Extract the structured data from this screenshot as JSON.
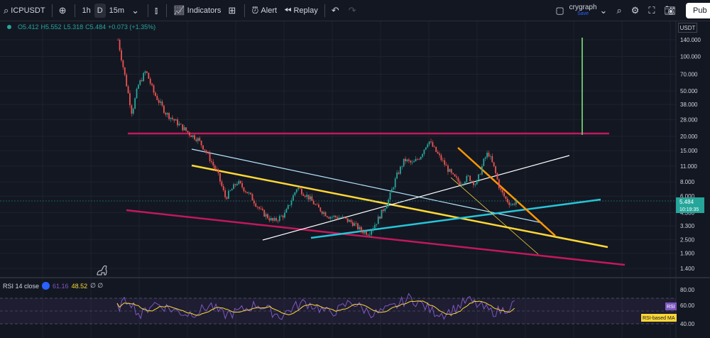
{
  "toolbar": {
    "symbol": "ICPUSDT",
    "intervals": [
      "1h",
      "D",
      "15m"
    ],
    "selected_interval": "D",
    "indicators_label": "Indicators",
    "alert_label": "Alert",
    "replay_label": "Replay",
    "layout_name": "crygraph",
    "layout_status": "Save",
    "publish_label": "Pub"
  },
  "ohlc": {
    "open": "O5.412",
    "high": "H5.552",
    "low": "L5.318",
    "close": "C5.484",
    "change": "+0.073 (+1.35%)"
  },
  "price_scale": {
    "currency": "USDT",
    "current_price": "5.484",
    "countdown": "10:19:35"
  },
  "rsi": {
    "title": "RSI 14 close",
    "rsi_value": "61.16",
    "ma_value": "48.52",
    "extra": "∅ ∅",
    "labels": [
      "RSI",
      "RSI-based MA"
    ],
    "ticks": [
      "80.00",
      "60.00",
      "40.00"
    ]
  },
  "colors": {
    "background": "#131722",
    "up": "#26a69a",
    "down": "#ef5350",
    "rsi_line": "#7e57c2",
    "rsi_ma": "#fdd835",
    "magenta": "#c2185b",
    "yellow": "#fdd835",
    "cyan": "#26c6da",
    "orange": "#ff9800",
    "green": "#4caf50"
  },
  "chart_data": {
    "type": "candlestick",
    "scale": "log",
    "y_ticks": [
      140,
      100,
      70,
      50,
      38,
      28,
      20,
      15,
      11,
      8,
      6,
      4.3,
      3.3,
      2.5,
      1.9,
      1.4
    ],
    "y_tick_labels": [
      "140.000",
      "100.000",
      "70.000",
      "50.000",
      "38.000",
      "28.000",
      "20.000",
      "15.000",
      "11.000",
      "8.000",
      "6.000",
      "4.300",
      "3.300",
      "2.500",
      "1.900",
      "1.400"
    ],
    "price_path": [
      [
        0.0,
        140
      ],
      [
        0.02,
        60
      ],
      [
        0.035,
        32
      ],
      [
        0.05,
        55
      ],
      [
        0.07,
        75
      ],
      [
        0.09,
        48
      ],
      [
        0.12,
        32
      ],
      [
        0.15,
        26
      ],
      [
        0.18,
        21
      ],
      [
        0.2,
        19
      ],
      [
        0.22,
        15
      ],
      [
        0.25,
        9.5
      ],
      [
        0.27,
        5.8
      ],
      [
        0.3,
        8.0
      ],
      [
        0.33,
        6.2
      ],
      [
        0.36,
        4.4
      ],
      [
        0.39,
        3.6
      ],
      [
        0.42,
        4.2
      ],
      [
        0.45,
        7.2
      ],
      [
        0.48,
        5.8
      ],
      [
        0.5,
        4.8
      ],
      [
        0.53,
        4.0
      ],
      [
        0.56,
        3.9
      ],
      [
        0.59,
        3.5
      ],
      [
        0.61,
        3.0
      ],
      [
        0.63,
        2.85
      ],
      [
        0.65,
        3.6
      ],
      [
        0.68,
        5.6
      ],
      [
        0.7,
        9.0
      ],
      [
        0.72,
        12.5
      ],
      [
        0.74,
        11.5
      ],
      [
        0.76,
        13.5
      ],
      [
        0.78,
        18.5
      ],
      [
        0.8,
        14.5
      ],
      [
        0.82,
        11.5
      ],
      [
        0.84,
        9.0
      ],
      [
        0.86,
        7.8
      ],
      [
        0.88,
        8.8
      ],
      [
        0.9,
        7.6
      ],
      [
        0.92,
        12.5
      ],
      [
        0.93,
        14.5
      ],
      [
        0.945,
        10.5
      ],
      [
        0.96,
        6.8
      ],
      [
        0.975,
        5.6
      ],
      [
        0.99,
        5.0
      ],
      [
        1.0,
        5.484
      ]
    ],
    "rsi_path": [
      0.52,
      0.7,
      0.35,
      0.62,
      0.55,
      0.46,
      0.4,
      0.45,
      0.58,
      0.38,
      0.42,
      0.5,
      0.6,
      0.47,
      0.35,
      0.52,
      0.63,
      0.55,
      0.42,
      0.48,
      0.66,
      0.5,
      0.4,
      0.47,
      0.58,
      0.72,
      0.6,
      0.45,
      0.4,
      0.52,
      0.68,
      0.56,
      0.44,
      0.47,
      0.61
    ]
  }
}
